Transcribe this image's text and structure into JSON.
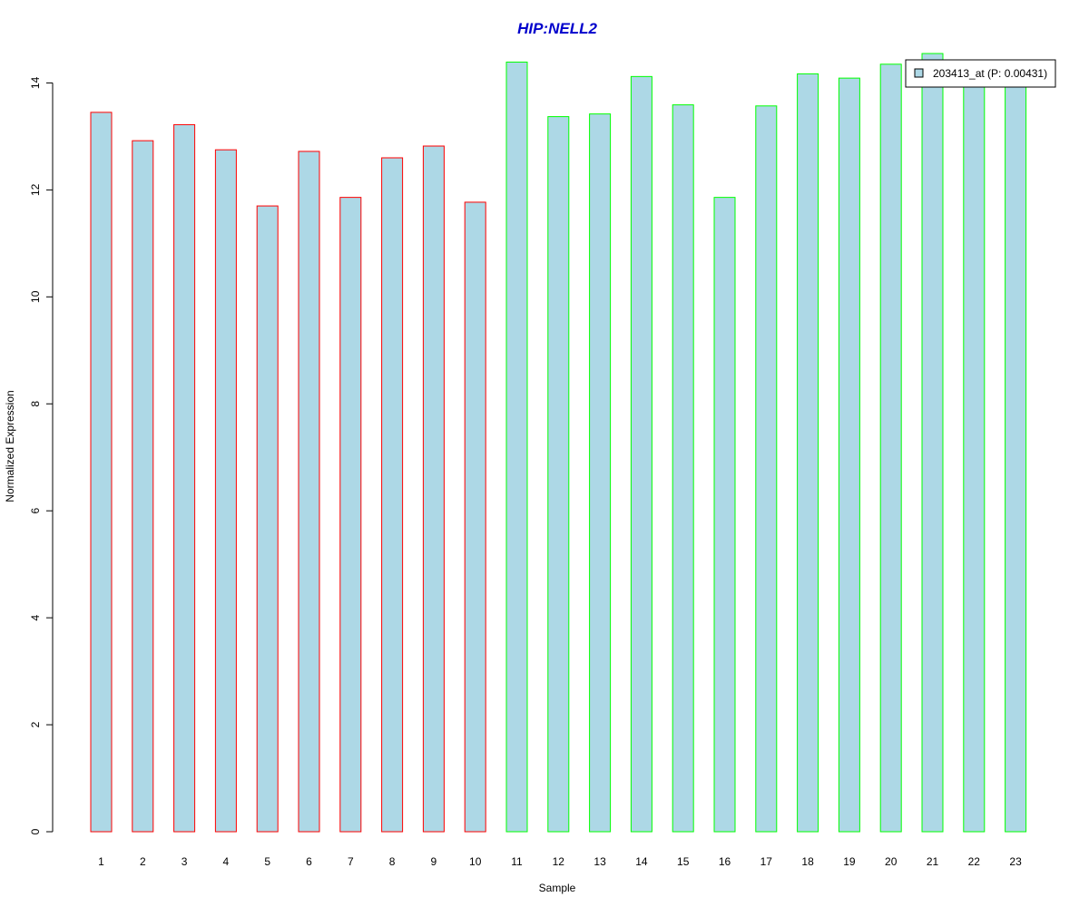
{
  "chart_data": {
    "type": "bar",
    "title": "HIP:NELL2",
    "xlabel": "Sample",
    "ylabel": "Normalized Expression",
    "categories": [
      "1",
      "2",
      "3",
      "4",
      "5",
      "6",
      "7",
      "8",
      "9",
      "10",
      "11",
      "12",
      "13",
      "14",
      "15",
      "16",
      "17",
      "18",
      "19",
      "20",
      "21",
      "22",
      "23"
    ],
    "series": [
      {
        "name": "203413_at (P: 0.00431)",
        "values": [
          13.45,
          12.92,
          13.22,
          12.75,
          11.7,
          12.72,
          11.86,
          12.6,
          12.82,
          11.77,
          14.39,
          13.37,
          13.42,
          14.12,
          13.59,
          11.86,
          13.57,
          14.17,
          14.09,
          14.35,
          14.55,
          14.35,
          14.15
        ]
      }
    ],
    "group_labels": [
      "1",
      "1",
      "1",
      "1",
      "1",
      "1",
      "1",
      "1",
      "1",
      "1",
      "2",
      "2",
      "2",
      "2",
      "2",
      "2",
      "2",
      "2",
      "2",
      "2",
      "2",
      "2",
      "2"
    ],
    "ylim": [
      0,
      14.55
    ],
    "yticks": [
      0,
      2,
      4,
      6,
      8,
      10,
      12,
      14
    ],
    "grid": false,
    "legend_position": "top-right",
    "colors": {
      "bar_fill": "#add8e6",
      "group_1_border": "#ff0000",
      "group_2_border": "#00ff00",
      "title": "#0000cc",
      "axis": "#000000"
    }
  }
}
